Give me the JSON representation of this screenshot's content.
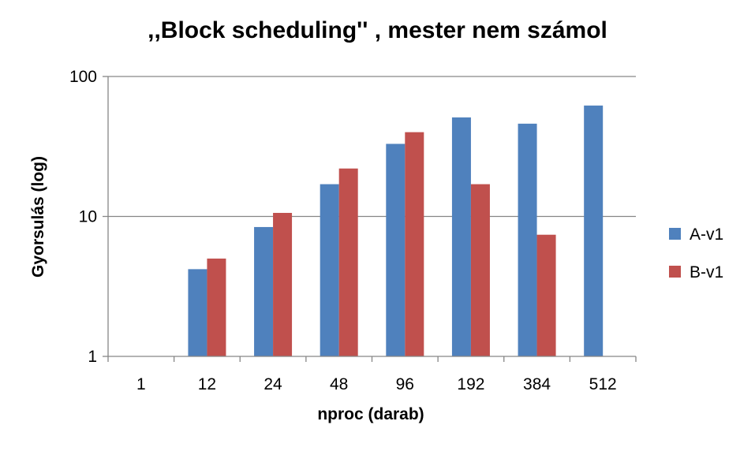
{
  "chart_data": {
    "type": "bar",
    "title": ",,Block scheduling'' , mester nem számol",
    "xlabel": "nproc (darab)",
    "ylabel": "Gyorsulás (log)",
    "categories": [
      "1",
      "12",
      "24",
      "48",
      "96",
      "192",
      "384",
      "512"
    ],
    "series": [
      {
        "name": "A-v1",
        "color": "#4f81bd",
        "values": [
          1,
          4.2,
          8.4,
          17,
          33,
          51,
          46,
          62
        ]
      },
      {
        "name": "B-v1",
        "color": "#c0504d",
        "values": [
          1,
          5.0,
          10.6,
          22,
          40,
          17,
          7.4,
          null
        ]
      }
    ],
    "y_scale": "log",
    "ylim": [
      1,
      100
    ],
    "y_ticks": [
      1,
      10,
      100
    ],
    "y_tick_labels": [
      "1",
      "10",
      "100"
    ],
    "grid": true,
    "legend_position": "right"
  }
}
